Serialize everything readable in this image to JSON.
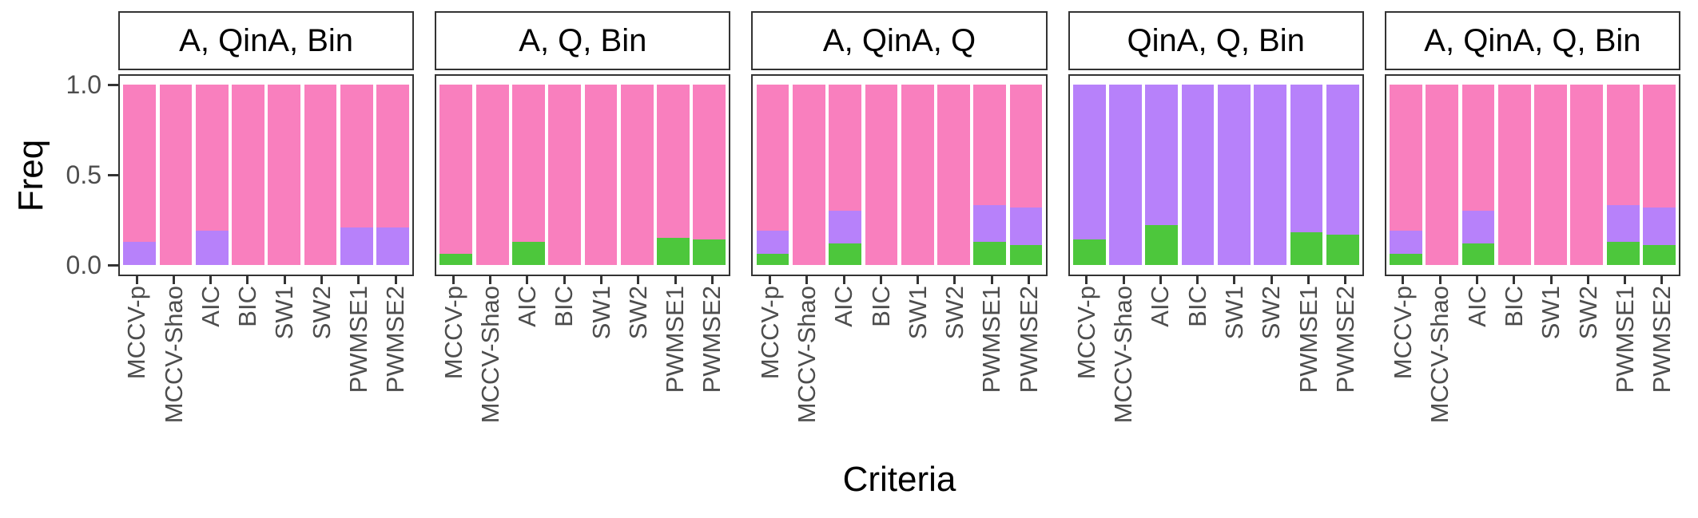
{
  "figure": {
    "y_axis": {
      "label": "Freq",
      "ticks": [
        {
          "label": "1.0",
          "value": 1.0
        },
        {
          "label": "0.5",
          "value": 0.5
        },
        {
          "label": "0.0",
          "value": 0.0
        }
      ]
    },
    "x_axis": {
      "label": "Criteria"
    }
  },
  "chart_data": {
    "type": "bar",
    "stacked": true,
    "title": "",
    "xlabel": "Criteria",
    "ylabel": "Freq",
    "ylim": [
      0,
      1
    ],
    "yticks": [
      0.0,
      0.5,
      1.0
    ],
    "grid": false,
    "legend": "none",
    "categories": [
      "MCCV-p",
      "MCCV-Shao",
      "AIC",
      "BIC",
      "SW1",
      "SW2",
      "PWMSE1",
      "PWMSE2"
    ],
    "colors": {
      "green": "#4DC73C",
      "purple": "#B781FA",
      "pink": "#F97FBE"
    },
    "stack_order_bottom_to_top": [
      "green",
      "purple",
      "pink"
    ],
    "facets": [
      {
        "title": "A, QinA, Bin",
        "series": [
          {
            "name": "green",
            "values": [
              0,
              0,
              0,
              0,
              0,
              0,
              0,
              0
            ]
          },
          {
            "name": "purple",
            "values": [
              0.13,
              0,
              0.19,
              0,
              0,
              0,
              0.21,
              0.21
            ]
          },
          {
            "name": "pink",
            "values": [
              0.87,
              1,
              0.81,
              1,
              1,
              1,
              0.79,
              0.79
            ]
          }
        ]
      },
      {
        "title": "A, Q, Bin",
        "series": [
          {
            "name": "green",
            "values": [
              0.06,
              0,
              0.13,
              0,
              0,
              0,
              0.15,
              0.14
            ]
          },
          {
            "name": "purple",
            "values": [
              0,
              0,
              0,
              0,
              0,
              0,
              0,
              0
            ]
          },
          {
            "name": "pink",
            "values": [
              0.94,
              1,
              0.87,
              1,
              1,
              1,
              0.85,
              0.86
            ]
          }
        ]
      },
      {
        "title": "A, QinA, Q",
        "series": [
          {
            "name": "green",
            "values": [
              0.06,
              0,
              0.12,
              0,
              0,
              0,
              0.13,
              0.11
            ]
          },
          {
            "name": "purple",
            "values": [
              0.13,
              0,
              0.18,
              0,
              0,
              0,
              0.2,
              0.21
            ]
          },
          {
            "name": "pink",
            "values": [
              0.81,
              1,
              0.7,
              1,
              1,
              1,
              0.67,
              0.68
            ]
          }
        ]
      },
      {
        "title": "QinA, Q, Bin",
        "series": [
          {
            "name": "green",
            "values": [
              0.14,
              0,
              0.22,
              0,
              0,
              0,
              0.18,
              0.17
            ]
          },
          {
            "name": "purple",
            "values": [
              0.86,
              1,
              0.78,
              1,
              1,
              1,
              0.82,
              0.83
            ]
          },
          {
            "name": "pink",
            "values": [
              0,
              0,
              0,
              0,
              0,
              0,
              0,
              0
            ]
          }
        ]
      },
      {
        "title": "A, QinA, Q, Bin",
        "series": [
          {
            "name": "green",
            "values": [
              0.06,
              0,
              0.12,
              0,
              0,
              0,
              0.13,
              0.11
            ]
          },
          {
            "name": "purple",
            "values": [
              0.13,
              0,
              0.18,
              0,
              0,
              0,
              0.2,
              0.21
            ]
          },
          {
            "name": "pink",
            "values": [
              0.81,
              1,
              0.7,
              1,
              1,
              1,
              0.67,
              0.68
            ]
          }
        ]
      }
    ]
  }
}
